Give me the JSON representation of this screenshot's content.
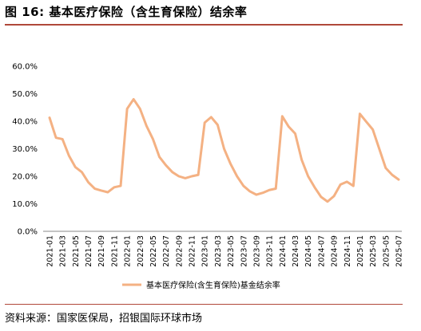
{
  "figure": {
    "title": "图 16: 基本医疗保险（含生育保险）结余率",
    "source": "资料来源：国家医保局，招银国际环球市场"
  },
  "chart_data": {
    "type": "line",
    "title": "",
    "xlabel": "",
    "ylabel": "",
    "ylim": [
      0,
      60
    ],
    "y_ticks": [
      "0.0%",
      "10.0%",
      "20.0%",
      "30.0%",
      "40.0%",
      "50.0%",
      "60.0%"
    ],
    "x_tick_labels": [
      "2021-01",
      "2021-03",
      "2021-05",
      "2021-07",
      "2021-09",
      "2021-11",
      "2022-01",
      "2022-03",
      "2022-05",
      "2022-07",
      "2022-09",
      "2022-11",
      "2023-01",
      "2023-03",
      "2023-05",
      "2023-07",
      "2023-09",
      "2023-11",
      "2024-01",
      "2024-03",
      "2024-05",
      "2024-07",
      "2024-09",
      "2024-11",
      "2025-01",
      "2025-03",
      "2025-05",
      "2025-07"
    ],
    "x": [
      "2021-01",
      "2021-02",
      "2021-03",
      "2021-04",
      "2021-05",
      "2021-06",
      "2021-07",
      "2021-08",
      "2021-09",
      "2021-10",
      "2021-11",
      "2021-12",
      "2022-01",
      "2022-02",
      "2022-03",
      "2022-04",
      "2022-05",
      "2022-06",
      "2022-07",
      "2022-08",
      "2022-09",
      "2022-10",
      "2022-11",
      "2022-12",
      "2023-01",
      "2023-02",
      "2023-03",
      "2023-04",
      "2023-05",
      "2023-06",
      "2023-07",
      "2023-08",
      "2023-09",
      "2023-10",
      "2023-11",
      "2023-12",
      "2024-01",
      "2024-02",
      "2024-03",
      "2024-04",
      "2024-05",
      "2024-06",
      "2024-07",
      "2024-08",
      "2024-09",
      "2024-10",
      "2024-11",
      "2024-12",
      "2025-01",
      "2025-02",
      "2025-03",
      "2025-04",
      "2025-05",
      "2025-06",
      "2025-07"
    ],
    "grid": false,
    "legend_position": "bottom-center",
    "series": [
      {
        "name": "基本医疗保险(含生育保险)基金结余率",
        "color": "#f4b183",
        "values": [
          41.3,
          34.0,
          33.5,
          27.5,
          23.3,
          21.5,
          17.8,
          15.5,
          14.8,
          14.2,
          16.0,
          16.5,
          44.5,
          48.0,
          44.5,
          38.3,
          33.5,
          27.0,
          24.0,
          21.5,
          20.0,
          19.3,
          20.0,
          20.5,
          39.5,
          41.5,
          38.7,
          30.0,
          24.5,
          20.0,
          16.5,
          14.5,
          13.3,
          14.0,
          15.0,
          15.5,
          41.8,
          38.0,
          35.5,
          26.0,
          20.0,
          16.0,
          12.5,
          10.8,
          12.8,
          17.0,
          18.0,
          16.5,
          42.7,
          39.8,
          37.0,
          30.0,
          23.0,
          20.5,
          18.8
        ]
      }
    ]
  }
}
